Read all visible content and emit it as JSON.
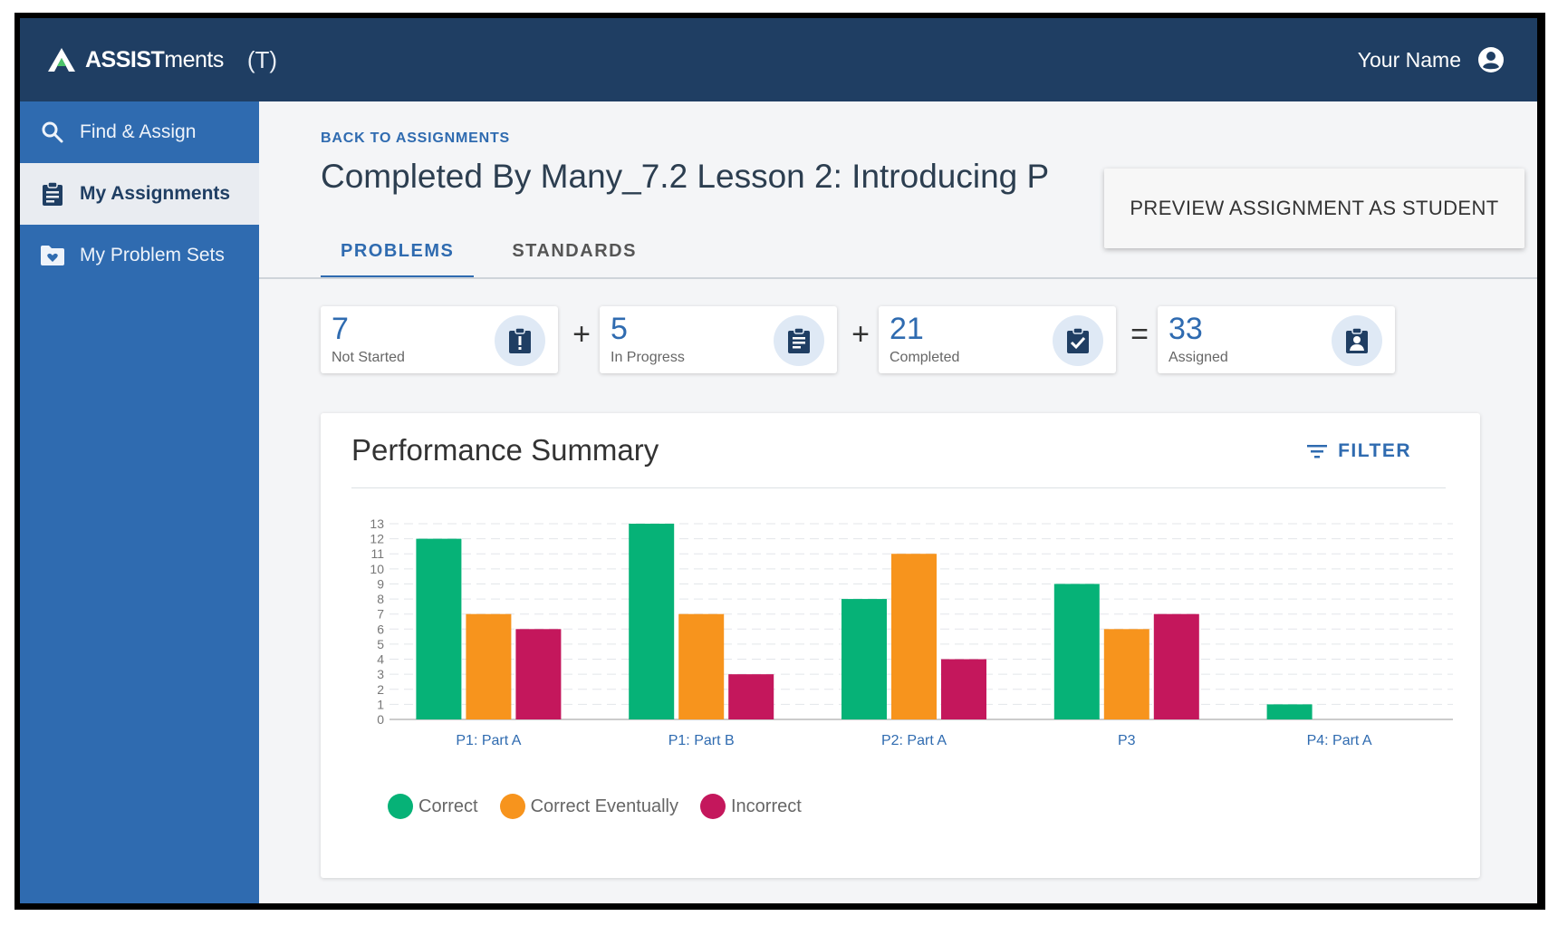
{
  "app": {
    "logo_bold": "ASSIST",
    "logo_light": "ments",
    "role": "(T)",
    "user_name": "Your Name"
  },
  "sidebar": {
    "items": [
      {
        "label": "Find & Assign",
        "icon": "search-icon",
        "active": false
      },
      {
        "label": "My Assignments",
        "icon": "clipboard-icon",
        "active": true
      },
      {
        "label": "My Problem Sets",
        "icon": "folder-heart-icon",
        "active": false
      }
    ]
  },
  "page": {
    "back_link": "BACK TO ASSIGNMENTS",
    "title": "Completed By Many_7.2 Lesson 2: Introducing P",
    "preview_button": "PREVIEW ASSIGNMENT AS STUDENT",
    "tabs": [
      {
        "label": "PROBLEMS",
        "active": true
      },
      {
        "label": "STANDARDS",
        "active": false
      }
    ]
  },
  "stats": {
    "items": [
      {
        "value": "7",
        "label": "Not Started",
        "icon": "clipboard-alert-icon"
      },
      {
        "value": "5",
        "label": "In Progress",
        "icon": "clipboard-list-icon"
      },
      {
        "value": "21",
        "label": "Completed",
        "icon": "clipboard-check-icon"
      },
      {
        "value": "33",
        "label": "Assigned",
        "icon": "clipboard-account-icon"
      }
    ],
    "operators": [
      "+",
      "+",
      "="
    ]
  },
  "summary": {
    "title": "Performance Summary",
    "filter_label": "FILTER"
  },
  "colors": {
    "correct": "#06b277",
    "correct_eventually": "#f7941d",
    "incorrect": "#c4175c",
    "primary": "#2f6bb0",
    "topbar": "#1f3e63"
  },
  "chart_data": {
    "type": "bar",
    "categories": [
      "P1: Part A",
      "P1: Part B",
      "P2: Part A",
      "P3",
      "P4: Part A"
    ],
    "series": [
      {
        "name": "Correct",
        "values": [
          12,
          13,
          8,
          9,
          1
        ]
      },
      {
        "name": "Correct Eventually",
        "values": [
          7,
          7,
          11,
          6,
          0
        ]
      },
      {
        "name": "Incorrect",
        "values": [
          6,
          3,
          4,
          7,
          0
        ]
      }
    ],
    "ylim": [
      0,
      13
    ],
    "yticks": [
      "0",
      "1",
      "2",
      "3",
      "4",
      "5",
      "6",
      "7",
      "8",
      "9",
      "10",
      "11",
      "12",
      "13"
    ],
    "grid": true,
    "legend_position": "bottom-left"
  }
}
